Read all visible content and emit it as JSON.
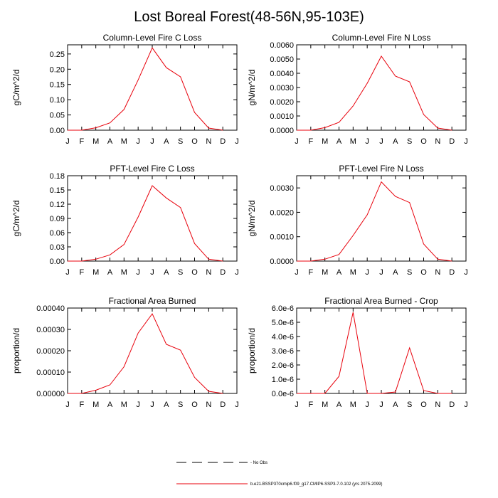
{
  "figure": {
    "title": "Lost Boreal Forest(48-56N,95-103E)"
  },
  "months": [
    "J",
    "F",
    "M",
    "A",
    "M",
    "J",
    "J",
    "A",
    "S",
    "O",
    "N",
    "D",
    "J"
  ],
  "chart_data": [
    {
      "type": "line",
      "title": "Column-Level Fire C Loss",
      "ylabel": "gC/m^2/d",
      "ylim": [
        0,
        0.28
      ],
      "yticks": [
        "0.00",
        "0.05",
        "0.10",
        "0.15",
        "0.20",
        "0.25"
      ],
      "ytick_values": [
        0,
        0.05,
        0.1,
        0.15,
        0.2,
        0.25
      ],
      "series": [
        {
          "color": "#e8000b",
          "x": [
            1,
            2,
            3,
            4,
            5,
            6,
            7,
            8,
            9,
            10,
            11,
            12
          ],
          "values": [
            0.0,
            0.0,
            0.008,
            0.024,
            0.068,
            0.165,
            0.27,
            0.205,
            0.175,
            0.058,
            0.007,
            0.0
          ]
        }
      ]
    },
    {
      "type": "line",
      "title": "Column-Level Fire N Loss",
      "ylabel": "gN/m^2/d",
      "ylim": [
        0,
        0.006
      ],
      "yticks": [
        "0.0000",
        "0.0010",
        "0.0020",
        "0.0030",
        "0.0040",
        "0.0050",
        "0.0060"
      ],
      "ytick_values": [
        0,
        0.001,
        0.002,
        0.003,
        0.004,
        0.005,
        0.006
      ],
      "series": [
        {
          "color": "#e8000b",
          "x": [
            1,
            2,
            3,
            4,
            5,
            6,
            7,
            8,
            9,
            10,
            11,
            12
          ],
          "values": [
            0.0,
            0.0,
            0.00018,
            0.00055,
            0.0017,
            0.0033,
            0.0052,
            0.0038,
            0.0034,
            0.0011,
            0.00015,
            0.0
          ]
        }
      ]
    },
    {
      "type": "line",
      "title": "PFT-Level Fire C Loss",
      "ylabel": "gC/m^2/d",
      "ylim": [
        0,
        0.18
      ],
      "yticks": [
        "0.00",
        "0.03",
        "0.06",
        "0.09",
        "0.12",
        "0.15",
        "0.18"
      ],
      "ytick_values": [
        0,
        0.03,
        0.06,
        0.09,
        0.12,
        0.15,
        0.18
      ],
      "series": [
        {
          "color": "#e8000b",
          "x": [
            1,
            2,
            3,
            4,
            5,
            6,
            7,
            8,
            9,
            10,
            11,
            12
          ],
          "values": [
            0.0,
            0.0,
            0.004,
            0.013,
            0.035,
            0.093,
            0.159,
            0.133,
            0.113,
            0.037,
            0.004,
            0.0
          ]
        }
      ]
    },
    {
      "type": "line",
      "title": "PFT-Level Fire N Loss",
      "ylabel": "gN/m^2/d",
      "ylim": [
        0,
        0.0035
      ],
      "yticks": [
        "0.0000",
        "0.0010",
        "0.0020",
        "0.0030"
      ],
      "ytick_values": [
        0,
        0.001,
        0.002,
        0.003
      ],
      "series": [
        {
          "color": "#e8000b",
          "x": [
            1,
            2,
            3,
            4,
            5,
            6,
            7,
            8,
            9,
            10,
            11,
            12
          ],
          "values": [
            0.0,
            0.0,
            8e-05,
            0.00027,
            0.00105,
            0.0019,
            0.00325,
            0.00265,
            0.0024,
            0.0007,
            8e-05,
            0.0
          ]
        }
      ]
    },
    {
      "type": "line",
      "title": "Fractional Area Burned",
      "ylabel": "proportion/d",
      "ylim": [
        0,
        0.0004
      ],
      "yticks": [
        "0.00000",
        "0.00010",
        "0.00020",
        "0.00030",
        "0.00040"
      ],
      "ytick_values": [
        0,
        0.0001,
        0.0002,
        0.0003,
        0.0004
      ],
      "series": [
        {
          "color": "#e8000b",
          "x": [
            1,
            2,
            3,
            4,
            5,
            6,
            7,
            8,
            9,
            10,
            11,
            12
          ],
          "values": [
            0.0,
            0.0,
            1.5e-05,
            4e-05,
            0.000125,
            0.000283,
            0.000373,
            0.00023,
            0.000203,
            7.5e-05,
            1e-05,
            0.0
          ]
        }
      ]
    },
    {
      "type": "line",
      "title": "Fractional Area Burned - Crop",
      "ylabel": "proportion/d",
      "ylim": [
        0,
        6e-06
      ],
      "yticks": [
        "0.0e-6",
        "1.0e-6",
        "2.0e-6",
        "3.0e-6",
        "4.0e-6",
        "5.0e-6",
        "6.0e-6"
      ],
      "ytick_values": [
        0,
        1e-06,
        2e-06,
        3e-06,
        4e-06,
        5e-06,
        6e-06
      ],
      "series": [
        {
          "color": "#e8000b",
          "x": [
            1,
            2,
            3,
            4,
            5,
            6,
            7,
            8,
            9,
            10,
            11,
            12
          ],
          "values": [
            0.0,
            0.0,
            0.0,
            1.2e-06,
            5.7e-06,
            0.0,
            0.0,
            1e-07,
            3.2e-06,
            2e-07,
            0.0,
            0.0
          ]
        }
      ]
    }
  ],
  "legend": {
    "entries": [
      {
        "style": "dashed",
        "color": "#000000",
        "label": "- No Obs"
      },
      {
        "style": "solid",
        "color": "#e8000b",
        "label": "b.e21.BSSP370cmip6.f09_g17.CMIP6-SSP3-7.0.102 (yrs 2075-2099)"
      }
    ]
  }
}
